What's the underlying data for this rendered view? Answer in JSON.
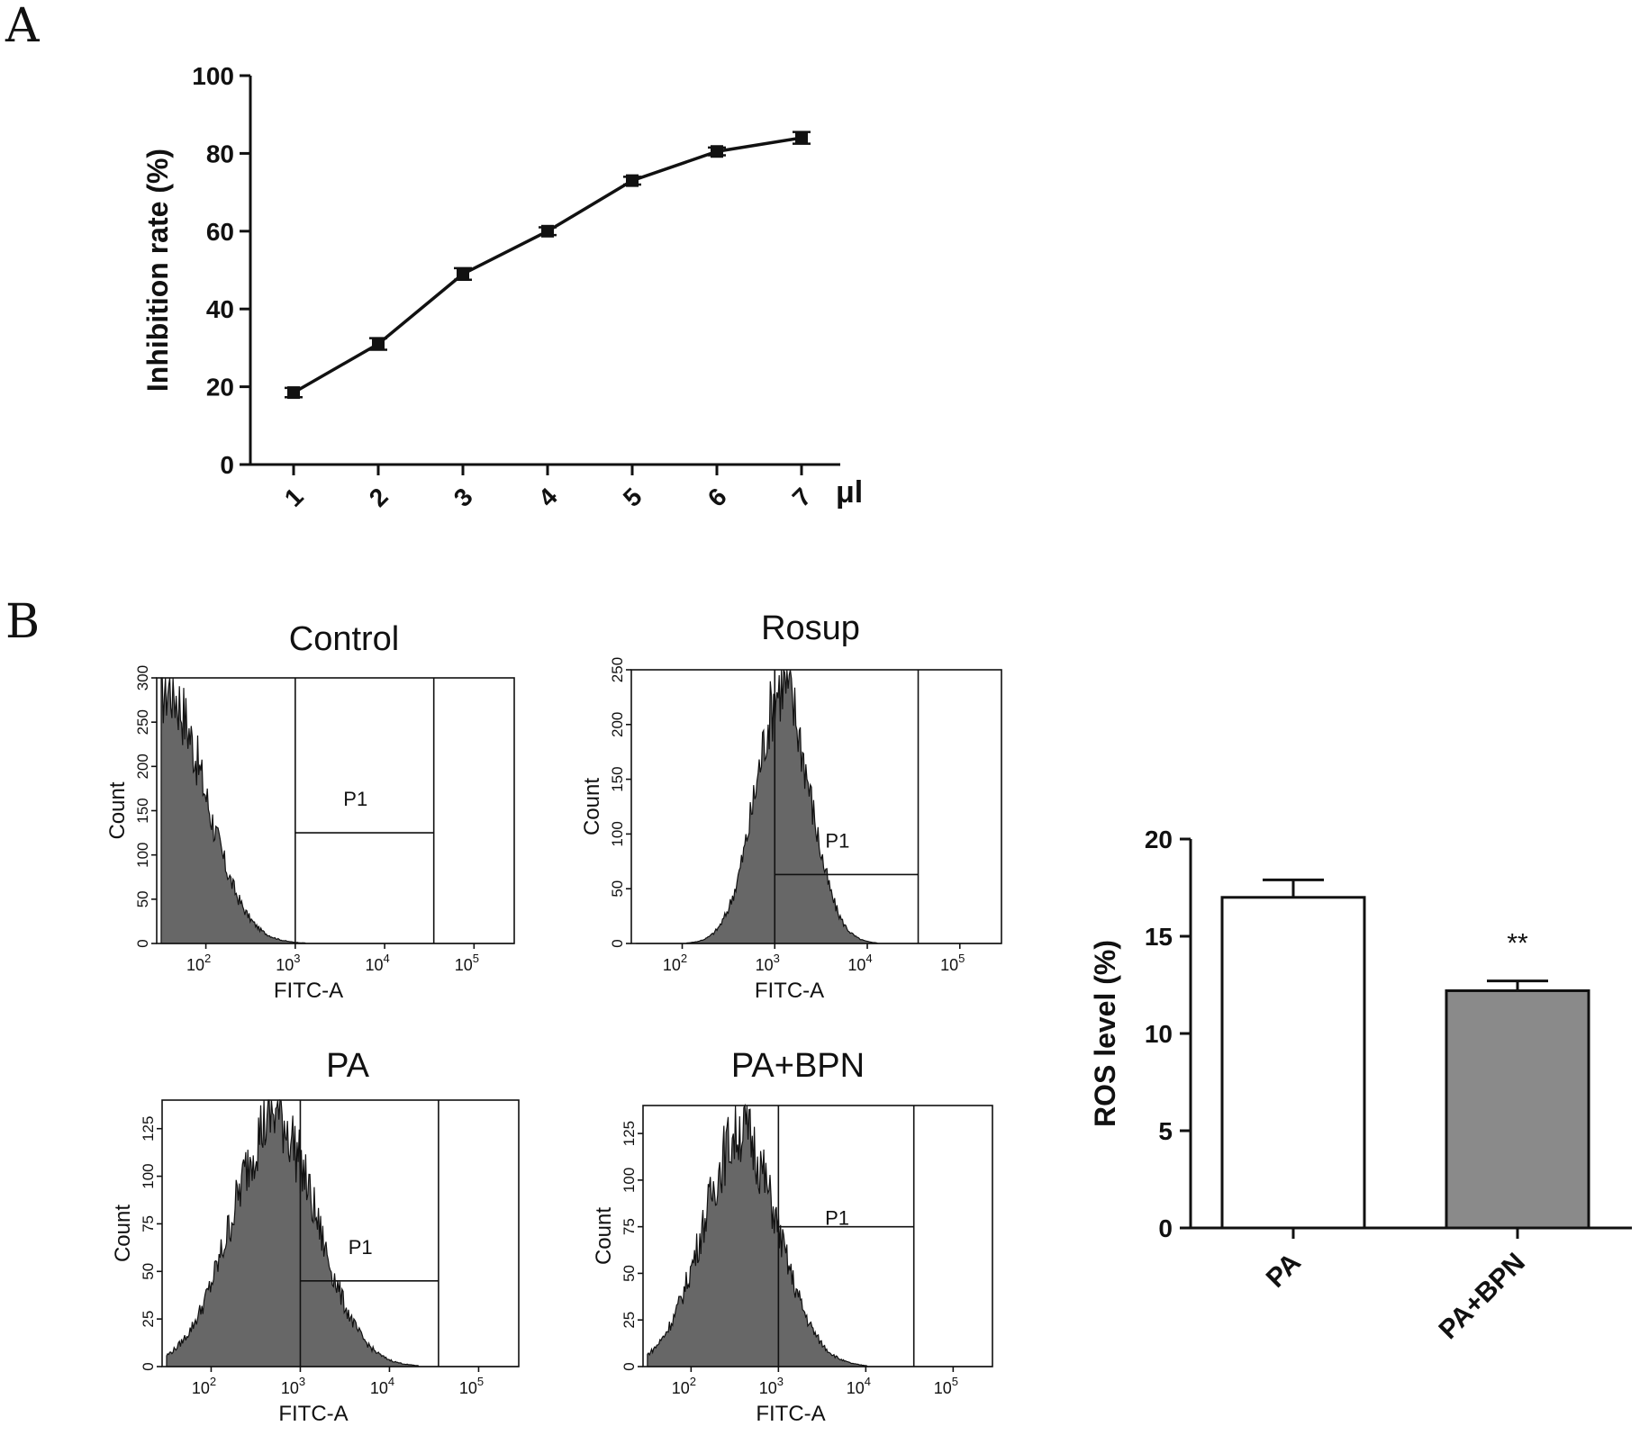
{
  "panels": {
    "a_letter": "A",
    "b_letter": "B"
  },
  "chart_data": [
    {
      "type": "line",
      "ylabel": "Inhibition rate (%)",
      "xunit": "μl",
      "categories": [
        "1",
        "2",
        "3",
        "4",
        "5",
        "6",
        "7"
      ],
      "values": [
        18.5,
        31,
        49,
        60,
        73,
        80.5,
        84
      ],
      "errors": [
        1.2,
        1.5,
        1.5,
        1.0,
        1.0,
        1.0,
        1.5
      ],
      "ylim": [
        0,
        100
      ],
      "yticks": [
        "0",
        "20",
        "40",
        "60",
        "80",
        "100"
      ],
      "grid": false
    },
    {
      "type": "area",
      "histograms": [
        {
          "title": "Control",
          "ylabel": "Count",
          "xlabel": "FITC-A",
          "gate_label": "P1",
          "ymax": 300,
          "yticks": [
            "0",
            "50",
            "100",
            "150",
            "200",
            "250",
            "300"
          ],
          "xticks": [
            {
              "base": "10",
              "exp": "2"
            },
            {
              "base": "10",
              "exp": "3"
            },
            {
              "base": "10",
              "exp": "4"
            },
            {
              "base": "10",
              "exp": "5"
            }
          ],
          "xlim_log10": [
            1.45,
            5.45
          ],
          "gate": {
            "start_log10": 3.0,
            "end_log10": 4.55,
            "level": 125
          },
          "peak_log10": 1.6,
          "peak_count": 300,
          "spread": 0.45
        },
        {
          "title": "Rosup",
          "ylabel": "Count",
          "xlabel": "FITC-A",
          "gate_label": "P1",
          "ymax": 250,
          "yticks": [
            "0",
            "50",
            "100",
            "150",
            "200",
            "250"
          ],
          "xticks": [
            {
              "base": "10",
              "exp": "2"
            },
            {
              "base": "10",
              "exp": "3"
            },
            {
              "base": "10",
              "exp": "4"
            },
            {
              "base": "10",
              "exp": "5"
            }
          ],
          "xlim_log10": [
            1.45,
            5.45
          ],
          "gate": {
            "start_log10": 3.0,
            "end_log10": 4.55,
            "level": 63
          },
          "peak_log10": 3.1,
          "peak_count": 245,
          "spread": 0.3
        },
        {
          "title": "PA",
          "ylabel": "Count",
          "xlabel": "FITC-A",
          "gate_label": "P1",
          "ymax": 140,
          "yticks": [
            "0",
            "25",
            "50",
            "75",
            "100",
            "125"
          ],
          "xticks": [
            {
              "base": "10",
              "exp": "2"
            },
            {
              "base": "10",
              "exp": "3"
            },
            {
              "base": "10",
              "exp": "4"
            },
            {
              "base": "10",
              "exp": "5"
            }
          ],
          "xlim_log10": [
            1.45,
            5.45
          ],
          "gate": {
            "start_log10": 3.0,
            "end_log10": 4.55,
            "level": 45
          },
          "peak_log10": 2.75,
          "peak_count": 138,
          "spread": 0.5
        },
        {
          "title": "PA+BPN",
          "ylabel": "Count",
          "xlabel": "FITC-A",
          "gate_label": "P1",
          "ymax": 140,
          "yticks": [
            "0",
            "25",
            "50",
            "75",
            "100",
            "125"
          ],
          "xticks": [
            {
              "base": "10",
              "exp": "2"
            },
            {
              "base": "10",
              "exp": "3"
            },
            {
              "base": "10",
              "exp": "4"
            },
            {
              "base": "10",
              "exp": "5"
            }
          ],
          "xlim_log10": [
            1.45,
            5.45
          ],
          "gate": {
            "start_log10": 3.0,
            "end_log10": 4.55,
            "level": 75
          },
          "peak_log10": 2.6,
          "peak_count": 132,
          "spread": 0.45
        }
      ]
    },
    {
      "type": "bar",
      "ylabel": "ROS level (%)",
      "categories": [
        "PA",
        "PA+BPN"
      ],
      "values": [
        17,
        12.2
      ],
      "errors": [
        0.9,
        0.5
      ],
      "bar_colors": [
        "#ffffff",
        "#8a8a8a"
      ],
      "annotations": [
        "",
        "**"
      ],
      "ylim": [
        0,
        20
      ],
      "yticks": [
        "0",
        "5",
        "10",
        "15",
        "20"
      ],
      "grid": false
    }
  ]
}
